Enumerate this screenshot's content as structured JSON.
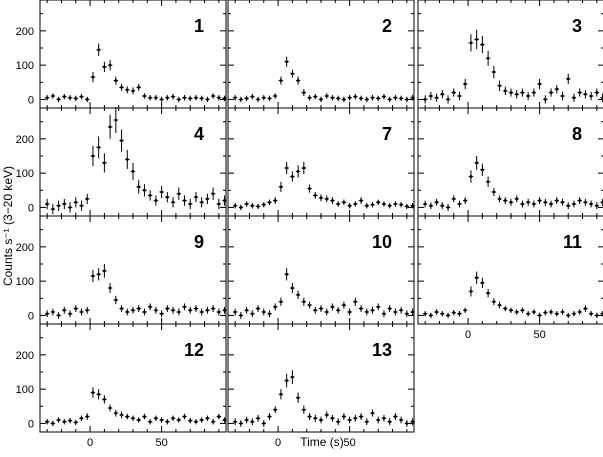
{
  "ylabel": "Counts s⁻¹ (3−20 keV)",
  "xlabel": "Time (s)",
  "chart_data": {
    "type": "scatter",
    "style": "error-bar light-curve grid of panels",
    "xlim": [
      -35,
      95
    ],
    "ylim": [
      -25,
      290
    ],
    "xticks_labeled": [
      0,
      50
    ],
    "yticks_labeled": [
      0,
      100,
      200
    ],
    "panels": [
      {
        "label": "1",
        "x": [
          -30,
          -26,
          -22,
          -18,
          -14,
          -10,
          -6,
          -2,
          2,
          6,
          10,
          14,
          18,
          22,
          26,
          30,
          34,
          38,
          42,
          46,
          50,
          54,
          58,
          62,
          66,
          70,
          74,
          78,
          82,
          86,
          90,
          94
        ],
        "y": [
          5,
          10,
          0,
          8,
          5,
          3,
          8,
          0,
          65,
          145,
          95,
          100,
          55,
          35,
          28,
          25,
          35,
          10,
          5,
          5,
          0,
          5,
          8,
          0,
          5,
          3,
          5,
          3,
          0,
          10,
          5,
          3
        ],
        "err": [
          8,
          8,
          8,
          8,
          8,
          8,
          8,
          8,
          15,
          18,
          15,
          15,
          12,
          10,
          10,
          10,
          10,
          8,
          8,
          8,
          8,
          8,
          8,
          8,
          8,
          8,
          8,
          8,
          8,
          8,
          8,
          8
        ]
      },
      {
        "label": "2",
        "x": [
          -30,
          -26,
          -22,
          -18,
          -14,
          -10,
          -6,
          -2,
          2,
          6,
          10,
          14,
          18,
          22,
          26,
          30,
          34,
          38,
          42,
          46,
          50,
          54,
          58,
          62,
          66,
          70,
          74,
          78,
          82,
          86,
          90,
          94
        ],
        "y": [
          5,
          0,
          3,
          8,
          0,
          5,
          3,
          10,
          55,
          110,
          75,
          55,
          20,
          5,
          8,
          0,
          10,
          5,
          3,
          0,
          5,
          8,
          3,
          0,
          5,
          3,
          8,
          0,
          5,
          3,
          0,
          5
        ],
        "err": [
          8,
          8,
          8,
          8,
          8,
          8,
          8,
          8,
          12,
          15,
          12,
          12,
          10,
          8,
          8,
          8,
          8,
          8,
          8,
          8,
          8,
          8,
          8,
          8,
          8,
          8,
          8,
          8,
          8,
          8,
          8,
          8
        ]
      },
      {
        "label": "3",
        "x": [
          -30,
          -26,
          -22,
          -18,
          -14,
          -10,
          -6,
          -2,
          2,
          6,
          10,
          14,
          18,
          22,
          26,
          30,
          34,
          38,
          42,
          46,
          50,
          54,
          58,
          62,
          66,
          70,
          74,
          78,
          82,
          86,
          90,
          94
        ],
        "y": [
          0,
          10,
          5,
          15,
          0,
          20,
          10,
          45,
          165,
          175,
          160,
          120,
          80,
          40,
          25,
          20,
          15,
          20,
          10,
          20,
          45,
          0,
          20,
          30,
          10,
          60,
          5,
          20,
          15,
          10,
          20,
          5
        ],
        "err": [
          12,
          12,
          12,
          12,
          12,
          12,
          12,
          15,
          25,
          28,
          25,
          22,
          18,
          15,
          12,
          12,
          12,
          12,
          12,
          12,
          15,
          12,
          12,
          12,
          12,
          15,
          12,
          12,
          12,
          12,
          12,
          12
        ]
      },
      {
        "label": "4",
        "x": [
          -30,
          -26,
          -22,
          -18,
          -14,
          -10,
          -6,
          -2,
          2,
          6,
          10,
          14,
          18,
          22,
          26,
          30,
          34,
          38,
          42,
          46,
          50,
          54,
          58,
          62,
          66,
          70,
          74,
          78,
          82,
          86,
          90,
          94
        ],
        "y": [
          10,
          -5,
          5,
          10,
          0,
          15,
          5,
          25,
          150,
          175,
          130,
          235,
          255,
          195,
          140,
          105,
          60,
          50,
          35,
          20,
          45,
          30,
          15,
          40,
          20,
          10,
          30,
          15,
          25,
          40,
          10,
          20
        ],
        "err": [
          15,
          15,
          15,
          15,
          15,
          15,
          15,
          15,
          30,
          32,
          28,
          35,
          38,
          32,
          28,
          25,
          20,
          18,
          15,
          15,
          18,
          15,
          15,
          18,
          15,
          15,
          15,
          15,
          15,
          18,
          15,
          15
        ]
      },
      {
        "label": "7",
        "x": [
          -30,
          -26,
          -22,
          -18,
          -14,
          -10,
          -6,
          -2,
          2,
          6,
          10,
          14,
          18,
          22,
          26,
          30,
          34,
          38,
          42,
          46,
          50,
          54,
          58,
          62,
          66,
          70,
          74,
          78,
          82,
          86,
          90,
          94
        ],
        "y": [
          5,
          0,
          10,
          5,
          3,
          8,
          15,
          20,
          60,
          115,
          90,
          105,
          115,
          55,
          35,
          28,
          25,
          20,
          10,
          15,
          5,
          10,
          20,
          5,
          8,
          15,
          10,
          5,
          10,
          8,
          3,
          5
        ],
        "err": [
          8,
          8,
          8,
          8,
          8,
          8,
          8,
          10,
          15,
          18,
          15,
          18,
          18,
          12,
          10,
          10,
          10,
          10,
          8,
          8,
          8,
          8,
          10,
          8,
          8,
          8,
          8,
          8,
          8,
          8,
          8,
          8
        ]
      },
      {
        "label": "8",
        "x": [
          -30,
          -26,
          -22,
          -18,
          -14,
          -10,
          -6,
          -2,
          2,
          6,
          10,
          14,
          18,
          22,
          26,
          30,
          34,
          38,
          42,
          46,
          50,
          54,
          58,
          62,
          66,
          70,
          74,
          78,
          82,
          86,
          90,
          94
        ],
        "y": [
          10,
          5,
          15,
          5,
          0,
          25,
          10,
          20,
          90,
          130,
          110,
          75,
          45,
          25,
          20,
          15,
          25,
          10,
          15,
          10,
          20,
          15,
          10,
          20,
          15,
          5,
          10,
          20,
          15,
          10,
          5,
          15
        ],
        "err": [
          10,
          10,
          10,
          10,
          10,
          10,
          10,
          10,
          18,
          20,
          18,
          15,
          12,
          10,
          10,
          10,
          10,
          10,
          10,
          10,
          10,
          10,
          10,
          10,
          10,
          10,
          10,
          10,
          10,
          10,
          10,
          10
        ]
      },
      {
        "label": "9",
        "x": [
          -30,
          -26,
          -22,
          -18,
          -14,
          -10,
          -6,
          -2,
          2,
          6,
          10,
          14,
          18,
          22,
          26,
          30,
          34,
          38,
          42,
          46,
          50,
          54,
          58,
          62,
          66,
          70,
          74,
          78,
          82,
          86,
          90,
          94
        ],
        "y": [
          5,
          10,
          0,
          15,
          5,
          20,
          10,
          15,
          115,
          120,
          130,
          80,
          45,
          20,
          10,
          15,
          20,
          10,
          25,
          15,
          5,
          20,
          15,
          10,
          25,
          15,
          20,
          10,
          15,
          20,
          10,
          15
        ],
        "err": [
          10,
          10,
          10,
          10,
          10,
          10,
          10,
          10,
          18,
          18,
          20,
          15,
          12,
          10,
          10,
          10,
          10,
          10,
          10,
          10,
          10,
          10,
          10,
          10,
          10,
          10,
          10,
          10,
          10,
          10,
          10,
          10
        ]
      },
      {
        "label": "10",
        "x": [
          -30,
          -26,
          -22,
          -18,
          -14,
          -10,
          -6,
          -2,
          2,
          6,
          10,
          14,
          18,
          22,
          26,
          30,
          34,
          38,
          42,
          46,
          50,
          54,
          58,
          62,
          66,
          70,
          74,
          78,
          82,
          86,
          90,
          94
        ],
        "y": [
          10,
          0,
          15,
          5,
          20,
          10,
          5,
          25,
          40,
          120,
          80,
          60,
          40,
          30,
          15,
          20,
          10,
          25,
          15,
          30,
          10,
          40,
          20,
          10,
          15,
          25,
          5,
          20,
          10,
          15,
          5,
          10
        ],
        "err": [
          10,
          10,
          10,
          10,
          10,
          10,
          10,
          10,
          12,
          18,
          15,
          12,
          12,
          10,
          10,
          10,
          10,
          10,
          10,
          10,
          10,
          12,
          10,
          10,
          10,
          10,
          10,
          10,
          10,
          10,
          10,
          10
        ]
      },
      {
        "label": "11",
        "x": [
          -30,
          -26,
          -22,
          -18,
          -14,
          -10,
          -6,
          -2,
          2,
          6,
          10,
          14,
          18,
          22,
          26,
          30,
          34,
          38,
          42,
          46,
          50,
          54,
          58,
          62,
          66,
          70,
          74,
          78,
          82,
          86,
          90,
          94
        ],
        "y": [
          5,
          0,
          10,
          5,
          0,
          8,
          5,
          15,
          70,
          110,
          95,
          65,
          40,
          30,
          20,
          15,
          10,
          15,
          5,
          10,
          0,
          8,
          10,
          5,
          10,
          0,
          5,
          10,
          20,
          5,
          0,
          5
        ],
        "err": [
          8,
          8,
          8,
          8,
          8,
          8,
          8,
          8,
          15,
          18,
          15,
          12,
          10,
          10,
          8,
          8,
          8,
          8,
          8,
          8,
          8,
          8,
          8,
          8,
          8,
          8,
          8,
          8,
          10,
          8,
          8,
          8
        ]
      },
      {
        "label": "12",
        "x": [
          -30,
          -26,
          -22,
          -18,
          -14,
          -10,
          -6,
          -2,
          2,
          6,
          10,
          14,
          18,
          22,
          26,
          30,
          34,
          38,
          42,
          46,
          50,
          54,
          58,
          62,
          66,
          70,
          74,
          78,
          82,
          86,
          90,
          94
        ],
        "y": [
          5,
          0,
          10,
          5,
          8,
          3,
          15,
          20,
          90,
          85,
          70,
          45,
          30,
          25,
          20,
          15,
          10,
          20,
          5,
          15,
          10,
          5,
          15,
          10,
          20,
          8,
          5,
          10,
          15,
          5,
          20,
          10
        ],
        "err": [
          8,
          8,
          8,
          8,
          8,
          8,
          8,
          10,
          15,
          15,
          12,
          10,
          10,
          10,
          8,
          8,
          8,
          8,
          8,
          8,
          8,
          8,
          8,
          8,
          8,
          8,
          8,
          8,
          8,
          8,
          8,
          8
        ]
      },
      {
        "label": "13",
        "x": [
          -30,
          -26,
          -22,
          -18,
          -14,
          -10,
          -6,
          -2,
          2,
          6,
          10,
          14,
          18,
          22,
          26,
          30,
          34,
          38,
          42,
          46,
          50,
          54,
          58,
          62,
          66,
          70,
          74,
          78,
          82,
          86,
          90,
          94
        ],
        "y": [
          5,
          0,
          10,
          5,
          15,
          0,
          20,
          40,
          85,
          125,
          135,
          75,
          40,
          20,
          15,
          10,
          25,
          15,
          5,
          20,
          10,
          15,
          20,
          5,
          30,
          10,
          15,
          5,
          20,
          10,
          0,
          5
        ],
        "err": [
          10,
          10,
          10,
          10,
          10,
          10,
          10,
          10,
          15,
          20,
          20,
          15,
          12,
          10,
          10,
          10,
          10,
          10,
          10,
          10,
          10,
          10,
          10,
          10,
          10,
          10,
          10,
          10,
          10,
          10,
          10,
          10
        ]
      }
    ]
  }
}
